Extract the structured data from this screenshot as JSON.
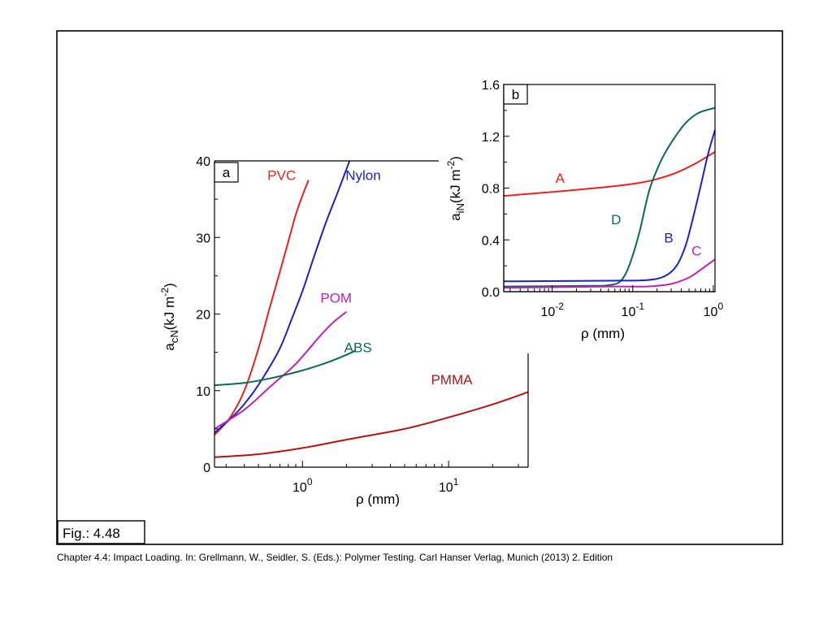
{
  "figure_label": "Fig.: 4.48",
  "caption": "Chapter 4.4: Impact Loading. In: Grellmann, W., Seidler, S. (Eds.): Polymer Testing. Carl Hanser Verlag, Munich (2013) 2. Edition",
  "chart_data": [
    {
      "type": "line",
      "panel_label": "a",
      "xlabel": "ρ (mm)",
      "ylabel_main": "a",
      "ylabel_sub": "cN",
      "ylabel_unit": "(kJ m",
      "ylabel_exp": "-2",
      "ylabel_close": ")",
      "x_scale": "log",
      "xlim": [
        0.25,
        35
      ],
      "ylim": [
        0,
        40
      ],
      "yticks": [
        "0",
        "10",
        "20",
        "30",
        "40"
      ],
      "xticks": [
        {
          "value": 1,
          "base": "10",
          "exp": "0"
        },
        {
          "value": 10,
          "base": "10",
          "exp": "1"
        }
      ],
      "series": [
        {
          "name": "PVC",
          "color": "#e8231f",
          "x": [
            0.25,
            0.32,
            0.4,
            0.5,
            0.6,
            0.7,
            0.8,
            0.9,
            1.0,
            1.1
          ],
          "y": [
            4.2,
            6.5,
            10.0,
            15.5,
            21.0,
            25.5,
            29.5,
            33.0,
            35.5,
            37.5
          ],
          "label_x": 0.72,
          "label_y": 37.5
        },
        {
          "name": "Nylon",
          "color": "#1c22c9",
          "x": [
            0.25,
            0.35,
            0.45,
            0.55,
            0.7,
            0.85,
            1.0,
            1.2,
            1.45,
            1.75,
            2.1
          ],
          "y": [
            4.5,
            7.0,
            9.5,
            12.0,
            15.5,
            19.5,
            23.0,
            27.5,
            32.0,
            36.0,
            40.0
          ],
          "label_x": 2.6,
          "label_y": 37.5
        },
        {
          "name": "POM",
          "color": "#c020b0",
          "x": [
            0.25,
            0.4,
            0.6,
            0.9,
            1.3,
            1.6,
            2.0
          ],
          "y": [
            5.0,
            7.5,
            10.5,
            13.5,
            17.0,
            18.8,
            20.3
          ],
          "label_x": 1.7,
          "label_y": 21.5
        },
        {
          "name": "ABS",
          "color": "#0a6b55",
          "x": [
            0.25,
            0.4,
            0.6,
            0.9,
            1.3,
            1.8,
            2.3
          ],
          "y": [
            10.7,
            11.0,
            11.6,
            12.4,
            13.3,
            14.3,
            15.2
          ],
          "label_x": 2.4,
          "label_y": 15.0
        },
        {
          "name": "PMMA",
          "color": "#b01414",
          "x": [
            0.25,
            0.5,
            1.0,
            2.0,
            5.0,
            10.0,
            20.0,
            35.0
          ],
          "y": [
            1.3,
            1.7,
            2.5,
            3.6,
            5.0,
            6.5,
            8.2,
            9.8
          ],
          "label_x": 10.5,
          "label_y": 10.8
        }
      ]
    },
    {
      "type": "line",
      "panel_label": "b",
      "xlabel": "ρ (mm)",
      "ylabel_main": "a",
      "ylabel_sub": "iN",
      "ylabel_unit": "(kJ m",
      "ylabel_exp": "-2",
      "ylabel_close": ")",
      "x_scale": "log",
      "xlim": [
        0.0025,
        1.05
      ],
      "ylim": [
        0,
        1.6
      ],
      "yticks": [
        "0.0",
        "0.4",
        "0.8",
        "1.2",
        "1.6"
      ],
      "xticks": [
        {
          "value": 0.01,
          "base": "10",
          "exp": "-2"
        },
        {
          "value": 0.1,
          "base": "10",
          "exp": "-1"
        },
        {
          "value": 1,
          "base": "10",
          "exp": "0"
        }
      ],
      "series": [
        {
          "name": "A",
          "color": "#e8231f",
          "x": [
            0.0025,
            0.01,
            0.05,
            0.12,
            0.2,
            0.35,
            0.6,
            1.05
          ],
          "y": [
            0.74,
            0.77,
            0.81,
            0.84,
            0.87,
            0.92,
            0.99,
            1.08
          ],
          "label_x": 0.0125,
          "label_y": 0.84
        },
        {
          "name": "D",
          "color": "#0a6b55",
          "x": [
            0.0025,
            0.03,
            0.05,
            0.07,
            0.09,
            0.12,
            0.16,
            0.22,
            0.3,
            0.45,
            0.65,
            1.05
          ],
          "y": [
            0.04,
            0.045,
            0.05,
            0.08,
            0.2,
            0.45,
            0.78,
            1.0,
            1.15,
            1.3,
            1.38,
            1.42
          ],
          "label_x": 0.062,
          "label_y": 0.52
        },
        {
          "name": "B",
          "color": "#1c22c9",
          "x": [
            0.0025,
            0.05,
            0.15,
            0.25,
            0.35,
            0.45,
            0.55,
            0.7,
            0.85,
            1.05
          ],
          "y": [
            0.08,
            0.085,
            0.09,
            0.12,
            0.2,
            0.35,
            0.55,
            0.82,
            1.05,
            1.25
          ],
          "label_x": 0.28,
          "label_y": 0.38
        },
        {
          "name": "C",
          "color": "#c020b0",
          "x": [
            0.0025,
            0.05,
            0.15,
            0.3,
            0.5,
            0.7,
            1.05
          ],
          "y": [
            0.03,
            0.04,
            0.04,
            0.06,
            0.11,
            0.17,
            0.25
          ],
          "label_x": 0.62,
          "label_y": 0.28
        }
      ]
    }
  ]
}
